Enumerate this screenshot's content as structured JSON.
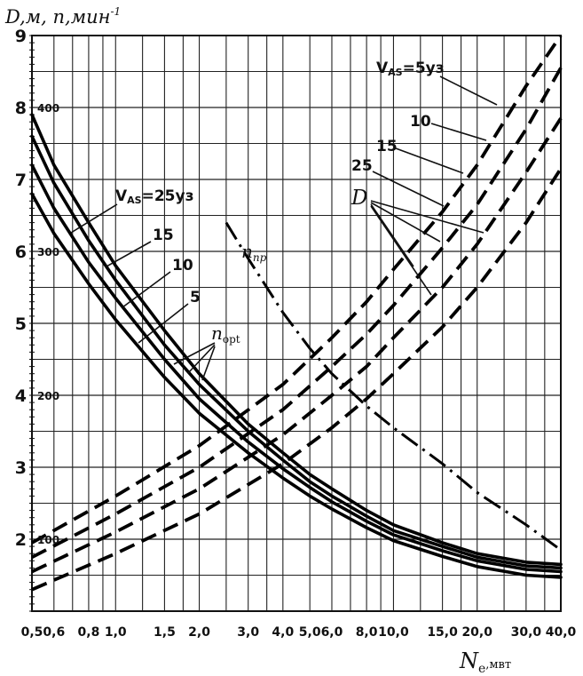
{
  "chart_data": {
    "type": "line",
    "title": "",
    "xscale": "log",
    "xlim": [
      0.5,
      40.0
    ],
    "ylim": [
      1.0,
      9.0
    ],
    "grid": true,
    "xlabel": {
      "symbol": "N",
      "sub": "e",
      "unit": ",мвт"
    },
    "ylabel": {
      "text": "D,м, n,мин",
      "sup": "-1"
    },
    "x_tick_labels": [
      {
        "x": 0.5,
        "label": "0,5"
      },
      {
        "x": 0.6,
        "label": "0,6"
      },
      {
        "x": 0.8,
        "label": "0,8"
      },
      {
        "x": 1.0,
        "label": "1,0"
      },
      {
        "x": 1.5,
        "label": "1,5"
      },
      {
        "x": 2.0,
        "label": "2,0"
      },
      {
        "x": 3.0,
        "label": "3,0"
      },
      {
        "x": 4.0,
        "label": "4,0"
      },
      {
        "x": 5.0,
        "label": "5,0"
      },
      {
        "x": 6.0,
        "label": "6,0"
      },
      {
        "x": 8.0,
        "label": "8,0"
      },
      {
        "x": 10.0,
        "label": "10,0"
      },
      {
        "x": 15.0,
        "label": "15,0"
      },
      {
        "x": 20.0,
        "label": "20,0"
      },
      {
        "x": 30.0,
        "label": "30,0"
      },
      {
        "x": 40.0,
        "label": "40,0"
      }
    ],
    "y_tick_labels_D": [
      {
        "y": 2,
        "label": "2"
      },
      {
        "y": 3,
        "label": "3"
      },
      {
        "y": 4,
        "label": "4"
      },
      {
        "y": 5,
        "label": "5"
      },
      {
        "y": 6,
        "label": "6"
      },
      {
        "y": 7,
        "label": "7"
      },
      {
        "y": 8,
        "label": "8"
      },
      {
        "y": 9,
        "label": "9"
      }
    ],
    "y_tick_labels_n": [
      {
        "y": 2.0,
        "label": "100"
      },
      {
        "y": 4.0,
        "label": "200"
      },
      {
        "y": 6.0,
        "label": "300"
      },
      {
        "y": 8.0,
        "label": "400"
      }
    ],
    "series_n_opt": [
      {
        "name": "25",
        "x": [
          0.5,
          0.6,
          0.8,
          1.0,
          1.5,
          2.0,
          3.0,
          4.0,
          5.0,
          6.0,
          8.0,
          10.0,
          15.0,
          20.0,
          30.0,
          40.0
        ],
        "y": [
          7.9,
          7.2,
          6.4,
          5.8,
          4.9,
          4.3,
          3.6,
          3.2,
          2.9,
          2.7,
          2.4,
          2.2,
          1.95,
          1.8,
          1.68,
          1.65
        ]
      },
      {
        "name": "15",
        "x": [
          0.5,
          0.6,
          0.8,
          1.0,
          1.5,
          2.0,
          3.0,
          4.0,
          5.0,
          6.0,
          8.0,
          10.0,
          15.0,
          20.0,
          30.0,
          40.0
        ],
        "y": [
          7.6,
          6.95,
          6.15,
          5.6,
          4.7,
          4.15,
          3.5,
          3.1,
          2.8,
          2.6,
          2.32,
          2.12,
          1.9,
          1.75,
          1.63,
          1.6
        ]
      },
      {
        "name": "10",
        "x": [
          0.5,
          0.6,
          0.8,
          1.0,
          1.5,
          2.0,
          3.0,
          4.0,
          5.0,
          6.0,
          8.0,
          10.0,
          15.0,
          20.0,
          30.0,
          40.0
        ],
        "y": [
          7.2,
          6.6,
          5.85,
          5.35,
          4.5,
          3.95,
          3.35,
          2.98,
          2.72,
          2.52,
          2.25,
          2.06,
          1.84,
          1.7,
          1.58,
          1.55
        ]
      },
      {
        "name": "5",
        "x": [
          0.5,
          0.6,
          0.8,
          1.0,
          1.5,
          2.0,
          3.0,
          4.0,
          5.0,
          6.0,
          8.0,
          10.0,
          15.0,
          20.0,
          30.0,
          40.0
        ],
        "y": [
          6.8,
          6.25,
          5.55,
          5.05,
          4.25,
          3.75,
          3.2,
          2.85,
          2.6,
          2.42,
          2.16,
          1.98,
          1.76,
          1.62,
          1.5,
          1.47
        ]
      }
    ],
    "series_D": [
      {
        "name": "5",
        "x": [
          0.5,
          1.0,
          2.0,
          4.0,
          6.0,
          8.0,
          10.0,
          15.0,
          20.0,
          30.0,
          40.0
        ],
        "y": [
          1.95,
          2.6,
          3.3,
          4.15,
          4.8,
          5.3,
          5.75,
          6.55,
          7.2,
          8.3,
          9.0
        ]
      },
      {
        "name": "10",
        "x": [
          0.5,
          1.0,
          2.0,
          4.0,
          6.0,
          8.0,
          10.0,
          15.0,
          20.0,
          30.0,
          40.0
        ],
        "y": [
          1.75,
          2.35,
          3.0,
          3.8,
          4.4,
          4.85,
          5.25,
          6.05,
          6.65,
          7.7,
          8.55
        ]
      },
      {
        "name": "15",
        "x": [
          0.5,
          1.0,
          2.0,
          4.0,
          6.0,
          8.0,
          10.0,
          15.0,
          20.0,
          30.0,
          40.0
        ],
        "y": [
          1.55,
          2.1,
          2.7,
          3.45,
          4.0,
          4.4,
          4.8,
          5.5,
          6.1,
          7.1,
          7.85
        ]
      },
      {
        "name": "25",
        "x": [
          0.5,
          1.0,
          2.0,
          4.0,
          6.0,
          8.0,
          10.0,
          15.0,
          20.0,
          30.0,
          40.0
        ],
        "y": [
          1.3,
          1.8,
          2.35,
          3.05,
          3.55,
          3.95,
          4.3,
          4.95,
          5.5,
          6.4,
          7.15
        ]
      }
    ],
    "series_n_pr": {
      "name": "n_пр",
      "x": [
        2.5,
        3.0,
        4.0,
        5.0,
        6.0,
        8.0,
        10.0,
        15.0,
        20.0,
        30.0,
        40.0
      ],
      "y": [
        6.4,
        5.9,
        5.15,
        4.65,
        4.3,
        3.85,
        3.55,
        3.05,
        2.65,
        2.2,
        1.85
      ]
    },
    "annotations": {
      "vas_top": "V",
      "vas_top_sub": "AS",
      "vas_top_value": "=5уз",
      "d10": "10",
      "d15": "15",
      "d25": "25",
      "d_label": "D",
      "vas_left": "V",
      "vas_left_sub": "AS",
      "vas_left_value": "=25уз",
      "n15": "15",
      "n10": "10",
      "n5": "5",
      "nopt_main": "n",
      "nopt_sub": "opt",
      "npr_main": "n",
      "npr_sub": "пр"
    }
  }
}
